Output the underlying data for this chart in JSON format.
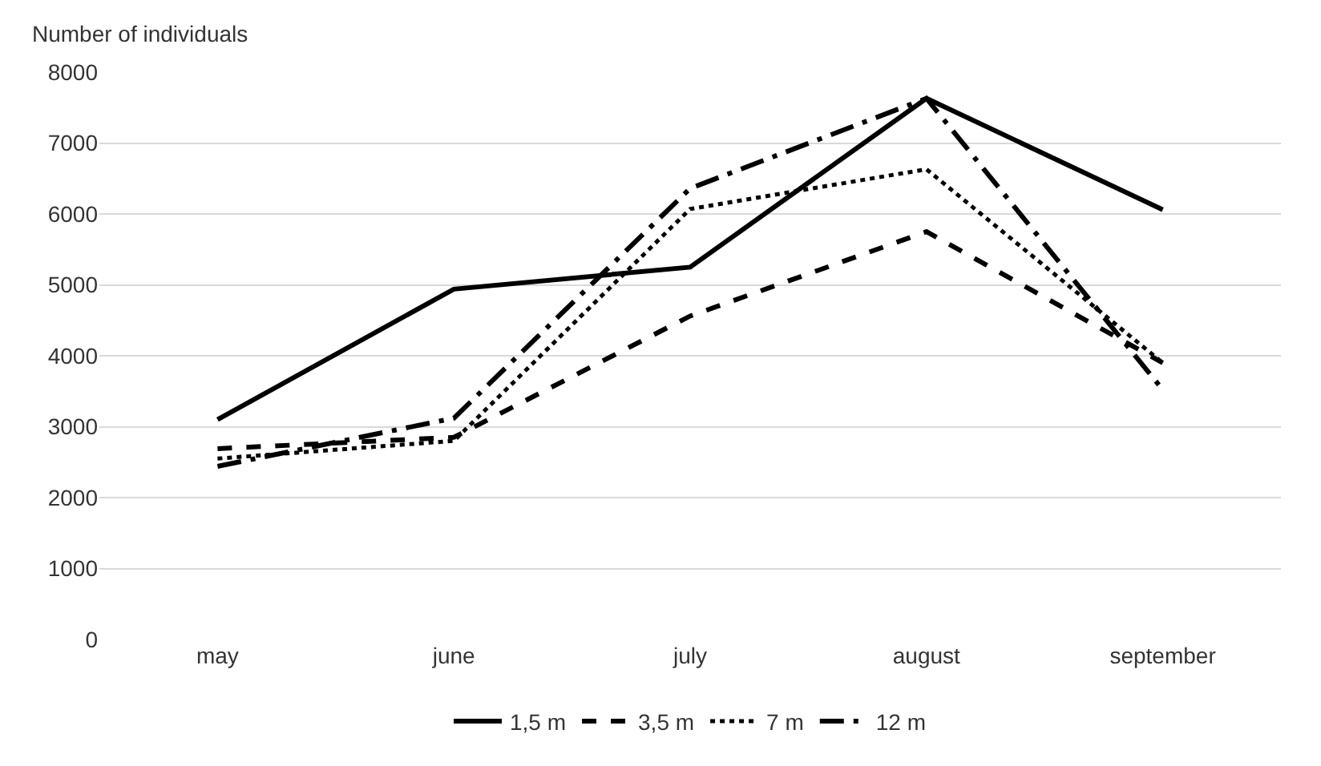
{
  "chart_data": {
    "type": "line",
    "ylabel": "Number of individuals",
    "categories": [
      "may",
      "june",
      "july",
      "august",
      "september"
    ],
    "series": [
      {
        "name": "1,5 m",
        "color": "#000000",
        "line_style": "solid",
        "values": [
          3100,
          4940,
          5250,
          7630,
          6060
        ]
      },
      {
        "name": "3,5 m",
        "color": "#000000",
        "line_style": "dashed",
        "values": [
          2690,
          2850,
          4560,
          5750,
          3900
        ]
      },
      {
        "name": "7 m",
        "color": "#000000",
        "line_style": "dotted",
        "values": [
          2550,
          2800,
          6070,
          6630,
          3900
        ]
      },
      {
        "name": "12 m",
        "color": "#000000",
        "line_style": "dashdot",
        "values": [
          2440,
          3120,
          6360,
          7630,
          3520
        ]
      }
    ],
    "ylim": [
      0,
      8000
    ],
    "yticks": [
      0,
      1000,
      2000,
      3000,
      4000,
      5000,
      6000,
      7000,
      8000
    ],
    "grid": "y",
    "legend": "bottom",
    "marker": "none"
  }
}
